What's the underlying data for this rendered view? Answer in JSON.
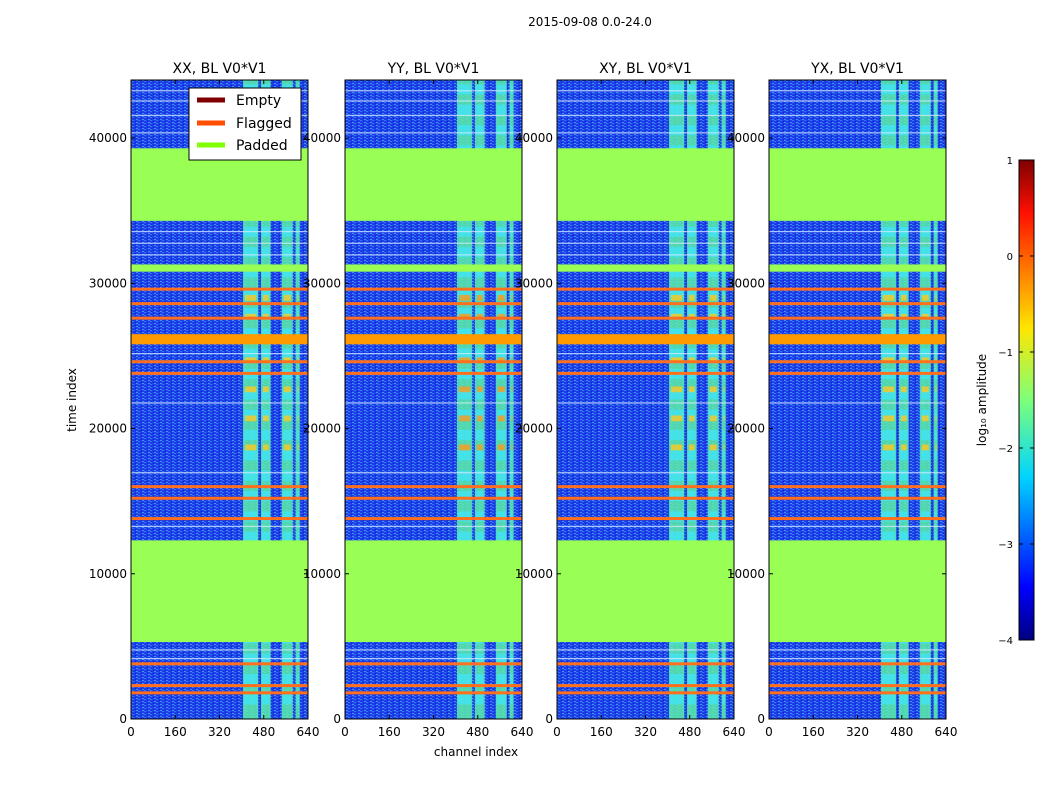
{
  "figure": {
    "suptitle": "2015-09-08 0.0-24.0",
    "xlabel": "channel index",
    "ylabel": "time index",
    "colorbar_label": "log₁₀ amplitude",
    "colors": {
      "background": "#ffffff",
      "padded": "#99ff55",
      "flagged": "#ff6f1e",
      "empty": "#800000",
      "data_base": "#1f3fe8"
    }
  },
  "chart_data": [
    {
      "type": "heatmap",
      "title": "XX, BL V0*V1",
      "polarization": "XX",
      "xlim": [
        0,
        640
      ],
      "ylim": [
        0,
        44000
      ],
      "xticks": [
        0,
        160,
        320,
        480,
        640
      ],
      "yticks": [
        0,
        10000,
        20000,
        30000,
        40000
      ],
      "padded_time_ranges": [
        [
          5300,
          12300
        ],
        [
          34300,
          39300
        ],
        [
          30800,
          31300
        ]
      ],
      "flagged_times": [
        1800,
        2300,
        3800,
        13800,
        15200,
        16000,
        23800,
        24600,
        26000,
        27600,
        28600,
        29600
      ],
      "bright_channel_ranges": [
        [
          405,
          460
        ],
        [
          470,
          505
        ],
        [
          545,
          585
        ],
        [
          595,
          610
        ]
      ],
      "color_scale": [
        -4,
        1
      ]
    },
    {
      "type": "heatmap",
      "title": "YY, BL V0*V1",
      "polarization": "YY",
      "xlim": [
        0,
        640
      ],
      "ylim": [
        0,
        44000
      ],
      "xticks": [
        0,
        160,
        320,
        480,
        640
      ],
      "yticks": [
        0,
        10000,
        20000,
        30000,
        40000
      ],
      "padded_time_ranges": [
        [
          5300,
          12300
        ],
        [
          34300,
          39300
        ],
        [
          30800,
          31300
        ]
      ],
      "flagged_times": [
        1800,
        2300,
        3800,
        13800,
        15200,
        16000,
        23800,
        24600,
        26000,
        27600,
        28600,
        29600
      ],
      "bright_channel_ranges": [
        [
          405,
          460
        ],
        [
          470,
          505
        ],
        [
          545,
          585
        ],
        [
          595,
          610
        ]
      ],
      "color_scale": [
        -4,
        1
      ]
    },
    {
      "type": "heatmap",
      "title": "XY, BL V0*V1",
      "polarization": "XY",
      "xlim": [
        0,
        640
      ],
      "ylim": [
        0,
        44000
      ],
      "xticks": [
        0,
        160,
        320,
        480,
        640
      ],
      "yticks": [
        0,
        10000,
        20000,
        30000,
        40000
      ],
      "padded_time_ranges": [
        [
          5300,
          12300
        ],
        [
          34300,
          39300
        ],
        [
          30800,
          31300
        ]
      ],
      "flagged_times": [
        1800,
        2300,
        3800,
        13800,
        15200,
        16000,
        23800,
        24600,
        26000,
        27600,
        28600,
        29600
      ],
      "bright_channel_ranges": [
        [
          405,
          460
        ],
        [
          470,
          505
        ],
        [
          545,
          585
        ],
        [
          595,
          610
        ]
      ],
      "color_scale": [
        -4,
        1
      ]
    },
    {
      "type": "heatmap",
      "title": "YX, BL V0*V1",
      "polarization": "YX",
      "xlim": [
        0,
        640
      ],
      "ylim": [
        0,
        44000
      ],
      "xticks": [
        0,
        160,
        320,
        480,
        640
      ],
      "yticks": [
        0,
        10000,
        20000,
        30000,
        40000
      ],
      "padded_time_ranges": [
        [
          5300,
          12300
        ],
        [
          34300,
          39300
        ],
        [
          30800,
          31300
        ]
      ],
      "flagged_times": [
        1800,
        2300,
        3800,
        13800,
        15200,
        16000,
        23800,
        24600,
        26000,
        27600,
        28600,
        29600
      ],
      "bright_channel_ranges": [
        [
          405,
          460
        ],
        [
          470,
          505
        ],
        [
          545,
          585
        ],
        [
          595,
          610
        ]
      ],
      "color_scale": [
        -4,
        1
      ]
    }
  ],
  "legend": {
    "placement": "top-center of first panel",
    "entries": [
      {
        "label": "Empty",
        "color": "#800000"
      },
      {
        "label": "Flagged",
        "color": "#ff4e00"
      },
      {
        "label": "Padded",
        "color": "#7fff00"
      }
    ]
  },
  "colorbar": {
    "ticks": [
      1,
      0,
      -1,
      -2,
      -3,
      -4
    ],
    "tick_labels": [
      "1",
      "0",
      "−1",
      "−2",
      "−3",
      "−4"
    ],
    "range": [
      -4,
      1
    ]
  }
}
